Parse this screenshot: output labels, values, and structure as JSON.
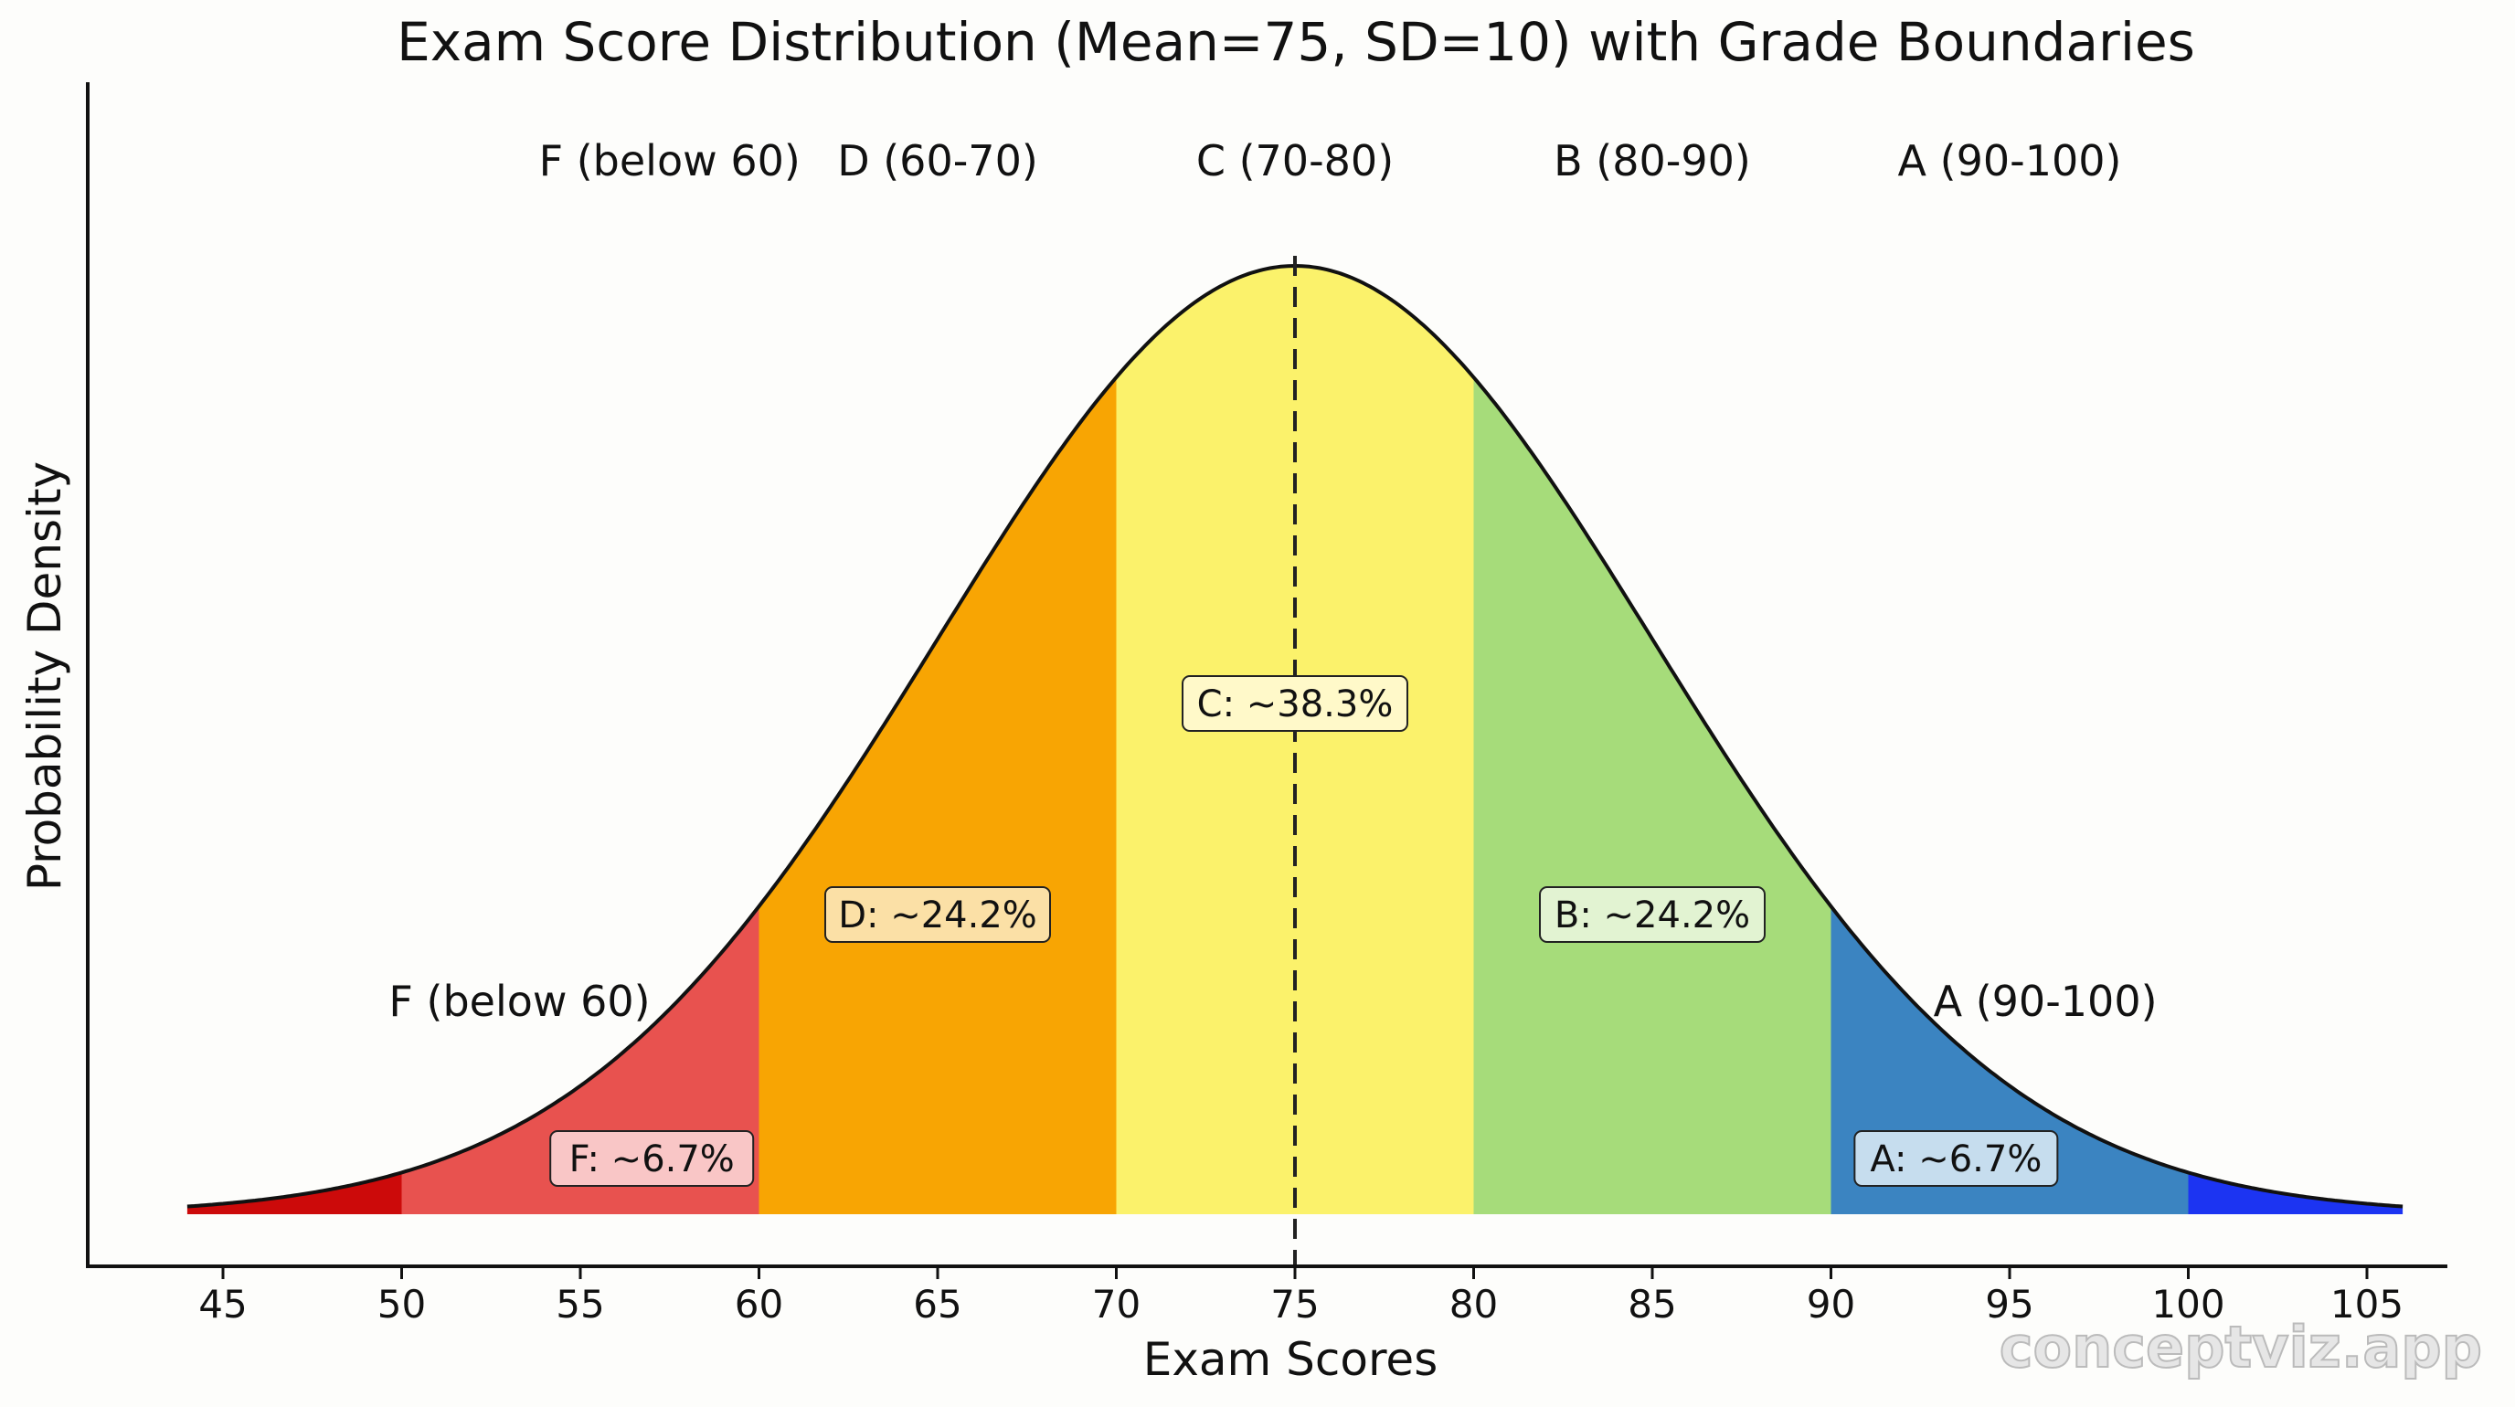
{
  "chart_data": {
    "type": "area",
    "title": "Exam Score Distribution (Mean=75, SD=10) with Grade Boundaries",
    "xlabel": "Exam Scores",
    "ylabel": "Probability Density",
    "xlim": [
      41,
      109
    ],
    "x_range_drawn": [
      44,
      106
    ],
    "mean": 75,
    "sd": 10,
    "x_ticks": [
      45,
      50,
      55,
      60,
      65,
      70,
      75,
      80,
      85,
      90,
      95,
      100,
      105
    ],
    "grid": false,
    "mean_line": {
      "x": 75,
      "style": "dashed"
    },
    "regions": [
      {
        "from": 44,
        "to": 50,
        "color": "#cc0a0a"
      },
      {
        "from": 50,
        "to": 60,
        "color": "#e8524f"
      },
      {
        "from": 60,
        "to": 70,
        "color": "#f8a503"
      },
      {
        "from": 70,
        "to": 80,
        "color": "#fbf26b"
      },
      {
        "from": 80,
        "to": 90,
        "color": "#a6dc7a"
      },
      {
        "from": 90,
        "to": 100,
        "color": "#3b84c1"
      },
      {
        "from": 100,
        "to": 106,
        "color": "#1c34f2"
      }
    ],
    "top_labels": [
      {
        "text": "F (below 60)",
        "x": 57.5
      },
      {
        "text": "D (60-70)",
        "x": 65
      },
      {
        "text": "C (70-80)",
        "x": 75
      },
      {
        "text": "B (80-90)",
        "x": 85
      },
      {
        "text": "A (90-100)",
        "x": 95
      }
    ],
    "side_labels": [
      {
        "text": "F (below 60)",
        "x": 53.3
      },
      {
        "text": "A (90-100)",
        "x": 96
      }
    ],
    "percent_labels": [
      {
        "text": "F: ~6.7%",
        "x": 57,
        "color": "#f9c6c6"
      },
      {
        "text": "D: ~24.2%",
        "x": 65,
        "color": "#fbe0a6"
      },
      {
        "text": "C: ~38.3%",
        "x": 75,
        "color": "#fff9c9"
      },
      {
        "text": "B: ~24.2%",
        "x": 85,
        "color": "#e2f3d2"
      },
      {
        "text": "A: ~6.7%",
        "x": 93.5,
        "color": "#c6ddee"
      }
    ]
  },
  "watermark": "conceptviz.app"
}
